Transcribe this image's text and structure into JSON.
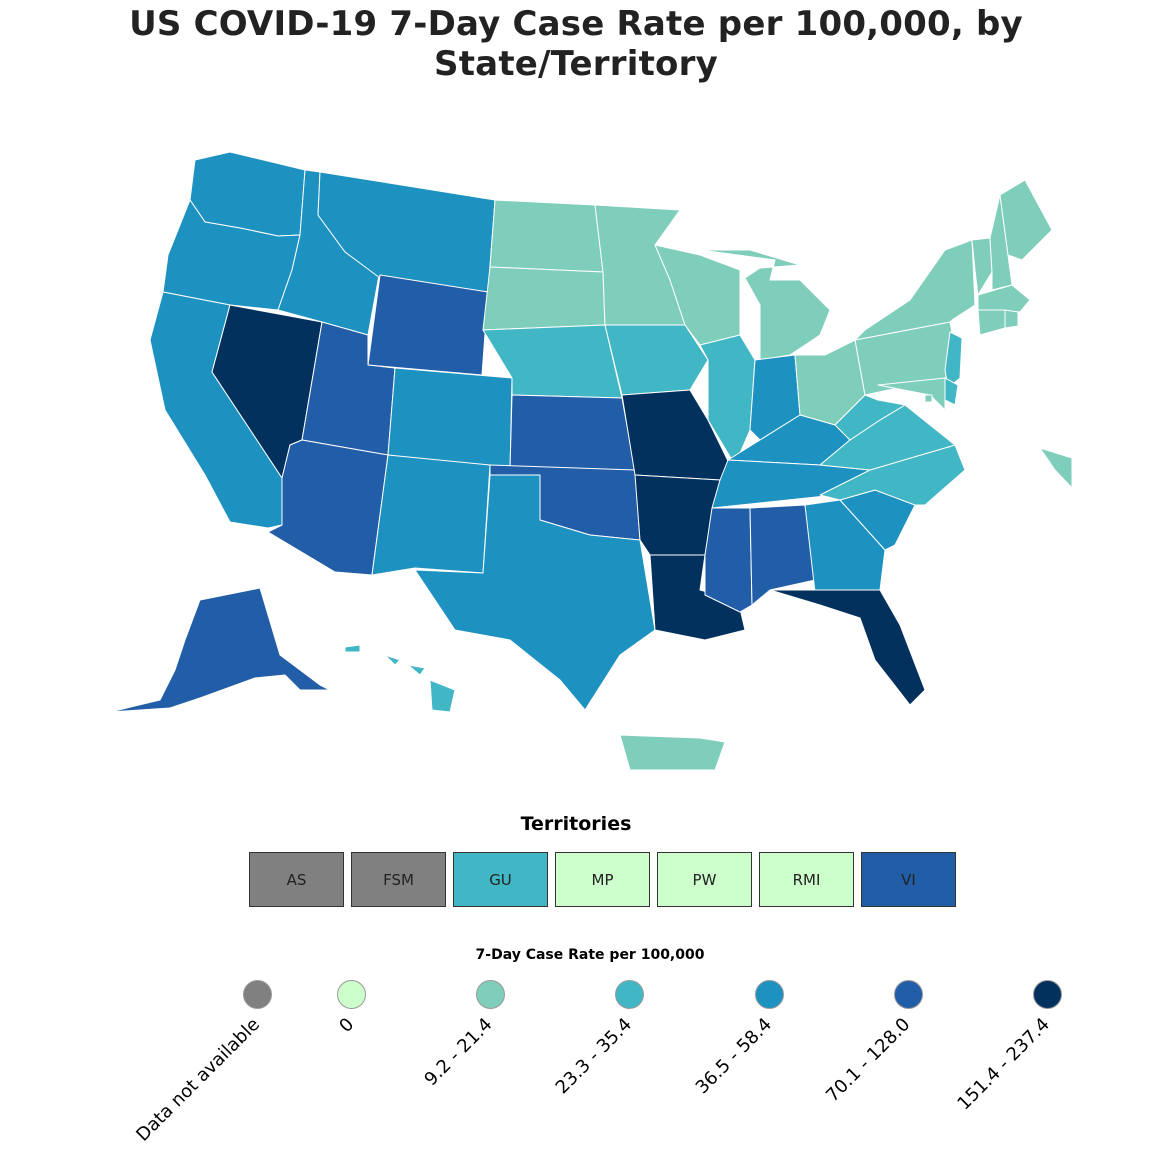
{
  "title": "US COVID-19 7-Day Case Rate per 100,000, by State/Territory",
  "colors": {
    "no_data": "#808080",
    "zero": "#ccffcc",
    "b1": "#7fcdbb",
    "b2": "#41b6c4",
    "b3": "#1d91c0",
    "b4": "#225ea8",
    "b5": "#0c2c84",
    "b6": "#03315e",
    "border": "#ffffff"
  },
  "regions": [
    {
      "name": "Washington",
      "bin": "b3"
    },
    {
      "name": "Oregon",
      "bin": "b3"
    },
    {
      "name": "California",
      "bin": "b3"
    },
    {
      "name": "Nevada",
      "bin": "b6"
    },
    {
      "name": "Idaho",
      "bin": "b3"
    },
    {
      "name": "Montana",
      "bin": "b3"
    },
    {
      "name": "Wyoming",
      "bin": "b4"
    },
    {
      "name": "Utah",
      "bin": "b4"
    },
    {
      "name": "Arizona",
      "bin": "b4"
    },
    {
      "name": "Colorado",
      "bin": "b3"
    },
    {
      "name": "New Mexico",
      "bin": "b3"
    },
    {
      "name": "North Dakota",
      "bin": "b1"
    },
    {
      "name": "South Dakota",
      "bin": "b1"
    },
    {
      "name": "Nebraska",
      "bin": "b2"
    },
    {
      "name": "Kansas",
      "bin": "b4"
    },
    {
      "name": "Oklahoma",
      "bin": "b4"
    },
    {
      "name": "Texas",
      "bin": "b3"
    },
    {
      "name": "Minnesota",
      "bin": "b1"
    },
    {
      "name": "Iowa",
      "bin": "b2"
    },
    {
      "name": "Missouri",
      "bin": "b6"
    },
    {
      "name": "Arkansas",
      "bin": "b6"
    },
    {
      "name": "Louisiana",
      "bin": "b6"
    },
    {
      "name": "Wisconsin",
      "bin": "b1"
    },
    {
      "name": "Illinois",
      "bin": "b2"
    },
    {
      "name": "Michigan",
      "bin": "b1"
    },
    {
      "name": "Indiana",
      "bin": "b3"
    },
    {
      "name": "Ohio",
      "bin": "b1"
    },
    {
      "name": "Kentucky",
      "bin": "b3"
    },
    {
      "name": "Tennessee",
      "bin": "b3"
    },
    {
      "name": "Mississippi",
      "bin": "b4"
    },
    {
      "name": "Alabama",
      "bin": "b4"
    },
    {
      "name": "Georgia",
      "bin": "b3"
    },
    {
      "name": "Florida",
      "bin": "b6"
    },
    {
      "name": "South Carolina",
      "bin": "b3"
    },
    {
      "name": "North Carolina",
      "bin": "b2"
    },
    {
      "name": "Virginia",
      "bin": "b2"
    },
    {
      "name": "West Virginia",
      "bin": "b2"
    },
    {
      "name": "Pennsylvania",
      "bin": "b1"
    },
    {
      "name": "New York",
      "bin": "b1"
    },
    {
      "name": "New Jersey",
      "bin": "b2"
    },
    {
      "name": "Maryland",
      "bin": "b1"
    },
    {
      "name": "Delaware",
      "bin": "b2"
    },
    {
      "name": "Vermont",
      "bin": "b1"
    },
    {
      "name": "New Hampshire",
      "bin": "b1"
    },
    {
      "name": "Maine",
      "bin": "b1"
    },
    {
      "name": "Massachusetts",
      "bin": "b1"
    },
    {
      "name": "Connecticut",
      "bin": "b1"
    },
    {
      "name": "Rhode Island",
      "bin": "b1"
    },
    {
      "name": "District of Columbia",
      "bin": "b1"
    },
    {
      "name": "Alaska",
      "bin": "b4"
    },
    {
      "name": "Hawaii",
      "bin": "b2"
    },
    {
      "name": "Puerto Rico",
      "bin": "b1"
    },
    {
      "name": "New York City",
      "bin": "b1"
    }
  ],
  "territories": {
    "heading": "Territories",
    "items": [
      {
        "label": "AS",
        "bin": "no_data"
      },
      {
        "label": "FSM",
        "bin": "no_data"
      },
      {
        "label": "GU",
        "bin": "b2"
      },
      {
        "label": "MP",
        "bin": "zero"
      },
      {
        "label": "PW",
        "bin": "zero"
      },
      {
        "label": "RMI",
        "bin": "zero"
      },
      {
        "label": "VI",
        "bin": "b4"
      }
    ]
  },
  "legend": {
    "title": "7-Day Case Rate per 100,000",
    "items": [
      {
        "label": "Data not available",
        "bin": "no_data"
      },
      {
        "label": "0",
        "bin": "zero"
      },
      {
        "label": "9.2 - 21.4",
        "bin": "b1"
      },
      {
        "label": "23.3 - 35.4",
        "bin": "b2"
      },
      {
        "label": "36.5 - 58.4",
        "bin": "b3"
      },
      {
        "label": "70.1 - 128.0",
        "bin": "b4"
      },
      {
        "label": "151.4 - 237.4",
        "bin": "b6"
      }
    ]
  }
}
